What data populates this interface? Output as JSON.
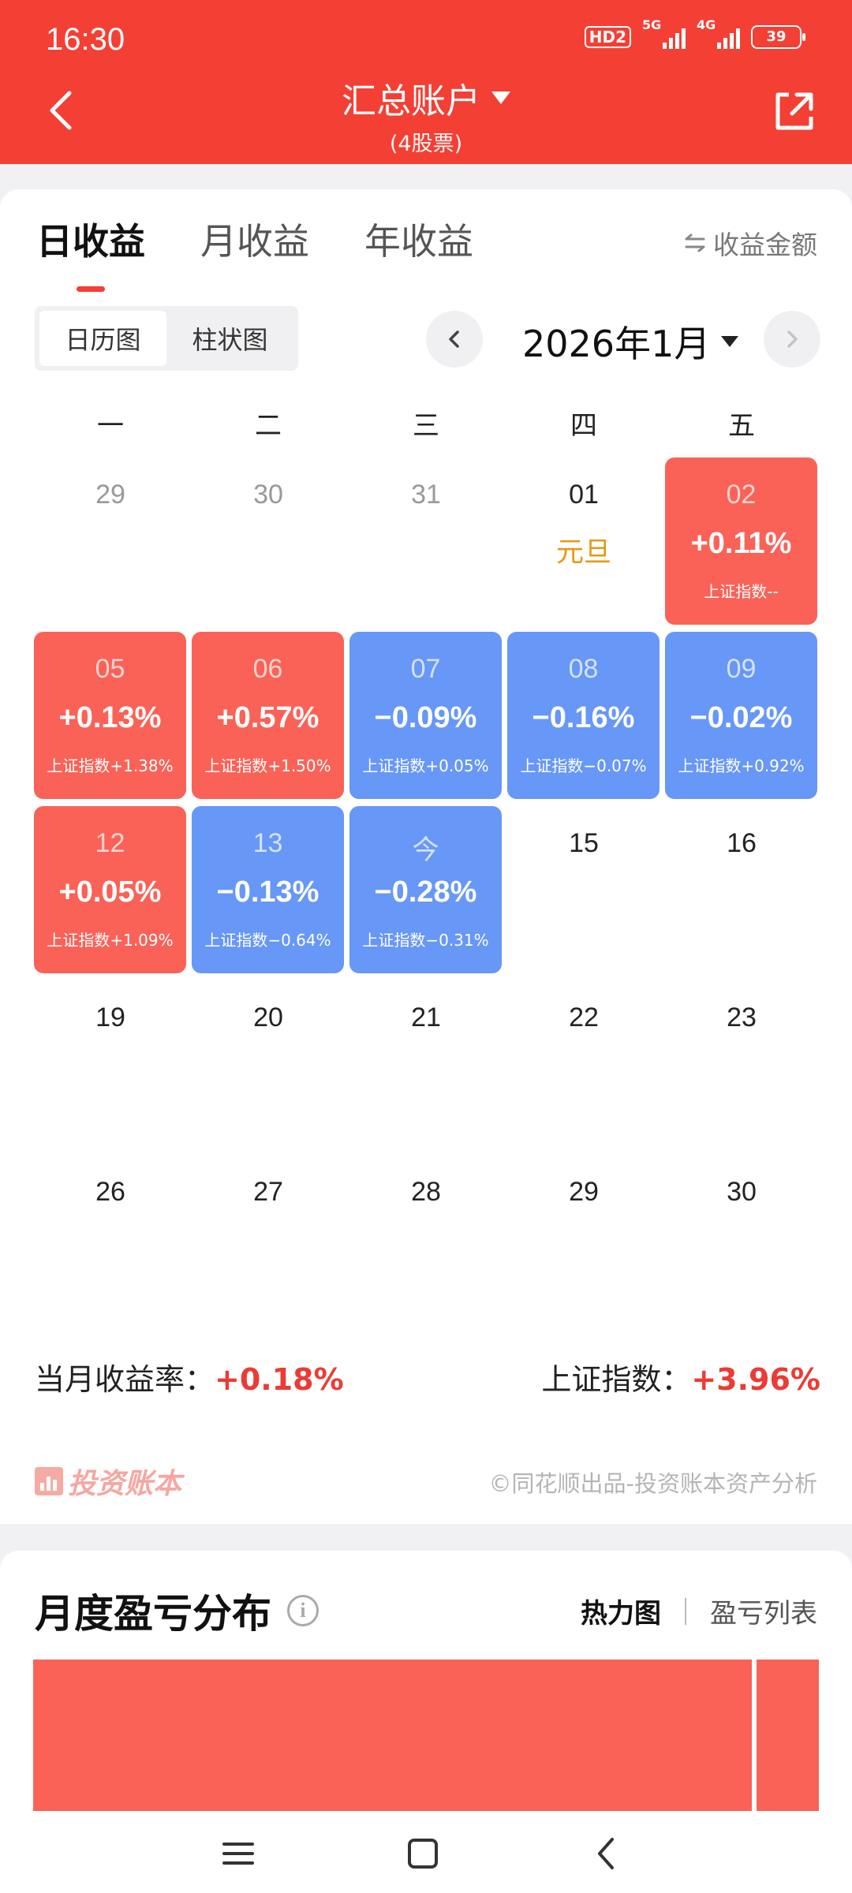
{
  "status": {
    "time": "16:30",
    "hd": "HD2",
    "net1": "5G",
    "net2": "4G",
    "battery": "39"
  },
  "header": {
    "title": "汇总账户",
    "subtitle": "(4股票)"
  },
  "tabs": [
    "日收益",
    "月收益",
    "年收益"
  ],
  "switch_label": "收益金额",
  "view_toggle": [
    "日历图",
    "柱状图"
  ],
  "month": "2026年1月",
  "weekdays": [
    "一",
    "二",
    "三",
    "四",
    "五"
  ],
  "calendar": [
    {
      "day": "29",
      "gray": true
    },
    {
      "day": "30",
      "gray": true
    },
    {
      "day": "31",
      "gray": true
    },
    {
      "day": "01",
      "holiday": "元旦"
    },
    {
      "day": "02",
      "pct": "+0.11%",
      "index": "上证指数--",
      "trend": "up"
    },
    {
      "day": "05",
      "pct": "+0.13%",
      "index": "上证指数+1.38%",
      "trend": "up"
    },
    {
      "day": "06",
      "pct": "+0.57%",
      "index": "上证指数+1.50%",
      "trend": "up"
    },
    {
      "day": "07",
      "pct": "−0.09%",
      "index": "上证指数+0.05%",
      "trend": "down"
    },
    {
      "day": "08",
      "pct": "−0.16%",
      "index": "上证指数−0.07%",
      "trend": "down"
    },
    {
      "day": "09",
      "pct": "−0.02%",
      "index": "上证指数+0.92%",
      "trend": "down"
    },
    {
      "day": "12",
      "pct": "+0.05%",
      "index": "上证指数+1.09%",
      "trend": "up"
    },
    {
      "day": "13",
      "pct": "−0.13%",
      "index": "上证指数−0.64%",
      "trend": "down"
    },
    {
      "day": "今",
      "pct": "−0.28%",
      "index": "上证指数−0.31%",
      "trend": "down"
    },
    {
      "day": "15"
    },
    {
      "day": "16"
    },
    {
      "day": "19"
    },
    {
      "day": "20"
    },
    {
      "day": "21"
    },
    {
      "day": "22"
    },
    {
      "day": "23"
    },
    {
      "day": "26"
    },
    {
      "day": "27"
    },
    {
      "day": "28"
    },
    {
      "day": "29"
    },
    {
      "day": "30"
    }
  ],
  "summary": {
    "month_label": "当月收益率：",
    "month_value": "+0.18%",
    "index_label": "上证指数：",
    "index_value": "+3.96%"
  },
  "brand": "投资账本",
  "credit": "©同花顺出品-投资账本资产分析",
  "section2": {
    "title": "月度盈亏分布",
    "view_selected": "热力图",
    "view_other": "盈亏列表",
    "heatmap_blocks": [
      0.92,
      0.08
    ]
  },
  "colors": {
    "brand_red": "#f43f34",
    "gain": "#fa6257",
    "loss": "#6797f7",
    "holiday": "#e39a12"
  }
}
